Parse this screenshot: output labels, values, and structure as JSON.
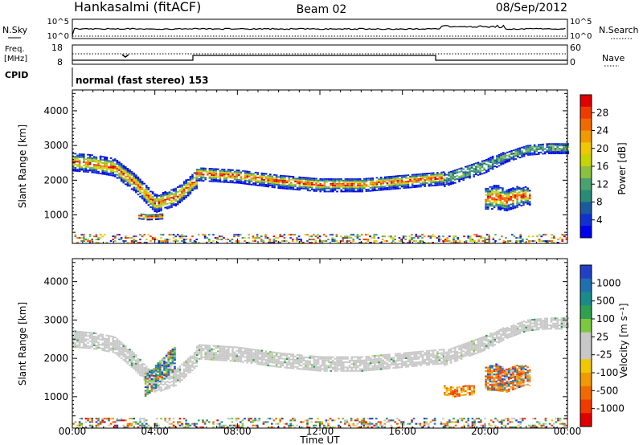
{
  "header": {
    "station": "Hankasalmi (fitACF)",
    "beam": "Beam 02",
    "date": "08/Sep/2012"
  },
  "top_panels": {
    "nsky_label": "N.Sky",
    "nsky_scale_top": "10^5",
    "nsky_scale_bottom": "10^0",
    "nsearch_label": "N.Search",
    "nsearch_scale_top": "10^5",
    "nsearch_scale_bottom": "10^0",
    "freq_label": "Freq.",
    "freq_unit": "[MHz]",
    "freq_top": "18",
    "freq_bottom": "8",
    "nave_label": "Nave",
    "nave_top": "60",
    "nave_bottom": "0",
    "cpid_label": "CPID",
    "cpid_text": "normal (fast stereo) 153"
  },
  "colorbars": {
    "power": {
      "label": "Power [dB]",
      "ticks": [
        "28",
        "24",
        "20",
        "16",
        "12",
        "8",
        "4"
      ],
      "colors": [
        "#e00000",
        "#f03a00",
        "#f06a00",
        "#f09a00",
        "#f0c800",
        "#c8d400",
        "#8cc040",
        "#4aa070",
        "#2a8a78",
        "#1a5aa0",
        "#1030d0",
        "#0000f0"
      ]
    },
    "velocity": {
      "label": "Velocity [m s⁻¹]",
      "ticks": [
        "1000",
        "500",
        "100",
        "25",
        "-25",
        "-100",
        "-500",
        "-1000"
      ],
      "colors": [
        "#2040c8",
        "#2070b0",
        "#1a8a8a",
        "#30a050",
        "#7cc840",
        "#c8c8c8",
        "#c8c8c8",
        "#f0c800",
        "#f09a00",
        "#f06a00",
        "#f03a00",
        "#e00000"
      ]
    }
  },
  "x_axis": {
    "title": "Time UT",
    "ticks": [
      "00:00",
      "04:00",
      "08:00",
      "12:00",
      "16:00",
      "20:00",
      "00:00"
    ]
  },
  "chart_data": [
    {
      "type": "heatmap",
      "panel": "power",
      "ylabel": "Slant Range [km]",
      "xlabel": "",
      "x_unit": "hours UT",
      "xlim": [
        0,
        24
      ],
      "ylim": [
        180,
        4600
      ],
      "yticks": [
        "1000",
        "2000",
        "3000",
        "4000"
      ],
      "grid": false,
      "colorbar_range_dB": [
        0,
        30
      ],
      "bands": [
        {
          "x": [
            0,
            1,
            2,
            3,
            4,
            5,
            6
          ],
          "center": [
            2500,
            2450,
            2350,
            1900,
            1300,
            1500,
            2000
          ],
          "halfwidth": [
            250,
            250,
            250,
            250,
            250,
            250,
            250
          ],
          "level": "high"
        },
        {
          "x": [
            6,
            8,
            10,
            12,
            14,
            16,
            18
          ],
          "center": [
            2150,
            2100,
            1950,
            1850,
            1850,
            1950,
            2050
          ],
          "halfwidth": [
            180,
            200,
            200,
            200,
            200,
            200,
            200
          ],
          "level": "high"
        },
        {
          "x": [
            18,
            19,
            20,
            21,
            22,
            23,
            24
          ],
          "center": [
            2000,
            2200,
            2400,
            2650,
            2850,
            2900,
            2900
          ],
          "halfwidth": [
            200,
            200,
            200,
            150,
            150,
            150,
            150
          ],
          "level": "mid"
        },
        {
          "x": [
            20,
            20.5,
            21,
            21.5,
            22,
            22.2
          ],
          "center": [
            1450,
            1500,
            1400,
            1500,
            1550,
            1450
          ],
          "halfwidth": [
            300,
            350,
            300,
            300,
            250,
            200
          ],
          "level": "high"
        },
        {
          "x": [
            3.2,
            3.6,
            4.0,
            4.4
          ],
          "center": [
            950,
            920,
            930,
            950
          ],
          "halfwidth": [
            80,
            80,
            80,
            80
          ],
          "level": "high"
        },
        {
          "x": [
            0,
            2,
            4,
            6,
            8,
            10,
            12,
            14,
            16,
            18,
            20,
            22,
            24
          ],
          "center": [
            300,
            300,
            300,
            300,
            300,
            300,
            300,
            300,
            300,
            300,
            300,
            300,
            300
          ],
          "halfwidth": [
            120,
            120,
            120,
            120,
            120,
            120,
            120,
            120,
            120,
            120,
            120,
            120,
            120
          ],
          "level": "mixed"
        }
      ]
    },
    {
      "type": "heatmap",
      "panel": "velocity",
      "ylabel": "Slant Range [km]",
      "xlabel": "Time UT",
      "x_unit": "hours UT",
      "xlim": [
        0,
        24
      ],
      "ylim": [
        180,
        4600
      ],
      "yticks": [
        "1000",
        "2000",
        "3000",
        "4000"
      ],
      "grid": false,
      "bands": [
        {
          "x": [
            0,
            1,
            2,
            3,
            4,
            5,
            6
          ],
          "center": [
            2500,
            2450,
            2350,
            1900,
            1300,
            1500,
            2000
          ],
          "halfwidth": [
            220,
            220,
            220,
            220,
            220,
            220,
            220
          ],
          "level": "ground"
        },
        {
          "x": [
            6,
            8,
            10,
            12,
            14,
            16,
            18
          ],
          "center": [
            2150,
            2100,
            1950,
            1850,
            1850,
            1950,
            2050
          ],
          "halfwidth": [
            180,
            200,
            200,
            200,
            200,
            200,
            200
          ],
          "level": "ground"
        },
        {
          "x": [
            18,
            19,
            20,
            21,
            22,
            23,
            24
          ],
          "center": [
            2000,
            2200,
            2400,
            2650,
            2850,
            2900,
            2900
          ],
          "halfwidth": [
            200,
            200,
            200,
            150,
            150,
            150,
            150
          ],
          "level": "ground"
        },
        {
          "x": [
            20,
            20.5,
            21,
            21.5,
            22,
            22.2
          ],
          "center": [
            1450,
            1500,
            1400,
            1500,
            1550,
            1450
          ],
          "halfwidth": [
            300,
            350,
            300,
            300,
            250,
            200
          ],
          "level": "mixed-neg"
        },
        {
          "x": [
            18,
            18.5,
            19,
            19.5
          ],
          "center": [
            1150,
            1100,
            1150,
            1150
          ],
          "halfwidth": [
            120,
            120,
            120,
            120
          ],
          "level": "negative"
        },
        {
          "x": [
            3.5,
            4,
            4.5,
            5
          ],
          "center": [
            1300,
            1500,
            1800,
            2000
          ],
          "halfwidth": [
            300,
            300,
            300,
            300
          ],
          "level": "mixed-pos"
        },
        {
          "x": [
            0,
            2,
            4,
            6,
            8,
            10,
            12,
            14,
            16,
            18,
            20,
            22,
            24
          ],
          "center": [
            300,
            300,
            300,
            300,
            300,
            300,
            300,
            300,
            300,
            300,
            300,
            300,
            300
          ],
          "halfwidth": [
            120,
            120,
            120,
            120,
            120,
            120,
            120,
            120,
            120,
            120,
            120,
            120,
            120
          ],
          "level": "mixed"
        }
      ]
    }
  ]
}
